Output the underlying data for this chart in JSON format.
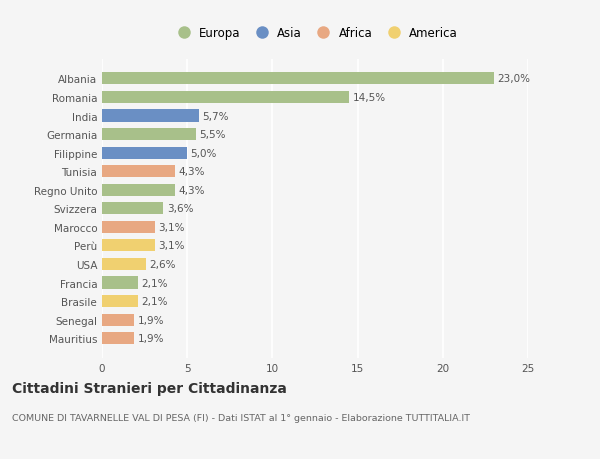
{
  "categories": [
    "Albania",
    "Romania",
    "India",
    "Germania",
    "Filippine",
    "Tunisia",
    "Regno Unito",
    "Svizzera",
    "Marocco",
    "Perù",
    "USA",
    "Francia",
    "Brasile",
    "Senegal",
    "Mauritius"
  ],
  "values": [
    23.0,
    14.5,
    5.7,
    5.5,
    5.0,
    4.3,
    4.3,
    3.6,
    3.1,
    3.1,
    2.6,
    2.1,
    2.1,
    1.9,
    1.9
  ],
  "labels": [
    "23,0%",
    "14,5%",
    "5,7%",
    "5,5%",
    "5,0%",
    "4,3%",
    "4,3%",
    "3,6%",
    "3,1%",
    "3,1%",
    "2,6%",
    "2,1%",
    "2,1%",
    "1,9%",
    "1,9%"
  ],
  "continents": [
    "Europa",
    "Europa",
    "Asia",
    "Europa",
    "Asia",
    "Africa",
    "Europa",
    "Europa",
    "Africa",
    "America",
    "America",
    "Europa",
    "America",
    "Africa",
    "Africa"
  ],
  "continent_colors": {
    "Europa": "#a8c08a",
    "Asia": "#6a8fc4",
    "Africa": "#e8a882",
    "America": "#f0d070"
  },
  "legend_order": [
    "Europa",
    "Asia",
    "Africa",
    "America"
  ],
  "legend_colors": [
    "#a8c08a",
    "#6a8fc4",
    "#e8a882",
    "#f0d070"
  ],
  "xlim": [
    0,
    25
  ],
  "xticks": [
    0,
    5,
    10,
    15,
    20,
    25
  ],
  "title": "Cittadini Stranieri per Cittadinanza",
  "subtitle": "COMUNE DI TAVARNELLE VAL DI PESA (FI) - Dati ISTAT al 1° gennaio - Elaborazione TUTTITALIA.IT",
  "background_color": "#f5f5f5",
  "grid_color": "#ffffff",
  "bar_height": 0.65,
  "label_fontsize": 7.5,
  "title_fontsize": 10,
  "subtitle_fontsize": 6.8,
  "tick_fontsize": 7.5,
  "legend_fontsize": 8.5
}
